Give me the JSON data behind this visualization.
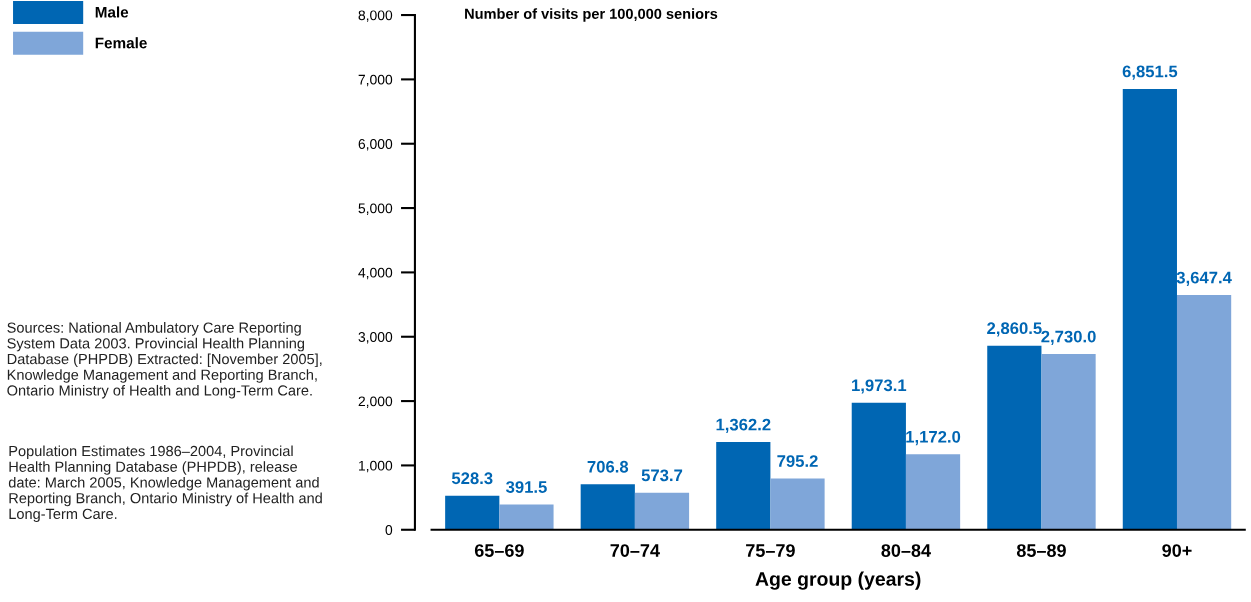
{
  "chart_data": {
    "type": "bar",
    "categories": [
      "65–69",
      "70–74",
      "75–79",
      "80–84",
      "85–89",
      "90+"
    ],
    "series": [
      {
        "name": "Male",
        "color": "#0066b3",
        "values": [
          528.3,
          706.8,
          1362.2,
          1973.1,
          2860.5,
          6851.5
        ],
        "value_labels": [
          "528.3",
          "706.8",
          "1,362.2",
          "1,973.1",
          "2,860.5",
          "6,851.5"
        ]
      },
      {
        "name": "Female",
        "color": "#7fa6d9",
        "values": [
          391.5,
          573.7,
          795.2,
          1172.0,
          2730.0,
          3647.4
        ],
        "value_labels": [
          "391.5",
          "573.7",
          "795.2",
          "1,172.0",
          "2,730.0",
          "3,647.4"
        ]
      }
    ],
    "ylabel": "Number of visits per 100,000 seniors",
    "xlabel": "Age group (years)",
    "ylim": [
      0,
      8000
    ],
    "yticks": [
      {
        "value": 0,
        "label": "0"
      },
      {
        "value": 1000,
        "label": "1,000"
      },
      {
        "value": 2000,
        "label": "2,000"
      },
      {
        "value": 3000,
        "label": "3,000"
      },
      {
        "value": 4000,
        "label": "4,000"
      },
      {
        "value": 5000,
        "label": "5,000"
      },
      {
        "value": 6000,
        "label": "6,000"
      },
      {
        "value": 7000,
        "label": "7,000"
      },
      {
        "value": 8000,
        "label": "8,000"
      }
    ],
    "legend": "top left",
    "annotations": [
      "Sources: National Ambulatory Care Reporting System Data 2003. Provincial Health Planning Database (PHPDB) Extracted: [November 2005], Knowledge Management and Reporting Branch, Ontario Ministry of Health and Long-Term Care.",
      "Population Estimates 1986–2004, Provincial Health Planning Database (PHPDB), release date: March 2005, Knowledge Management and Reporting Branch, Ontario Ministry of Health and Long-Term Care."
    ]
  }
}
